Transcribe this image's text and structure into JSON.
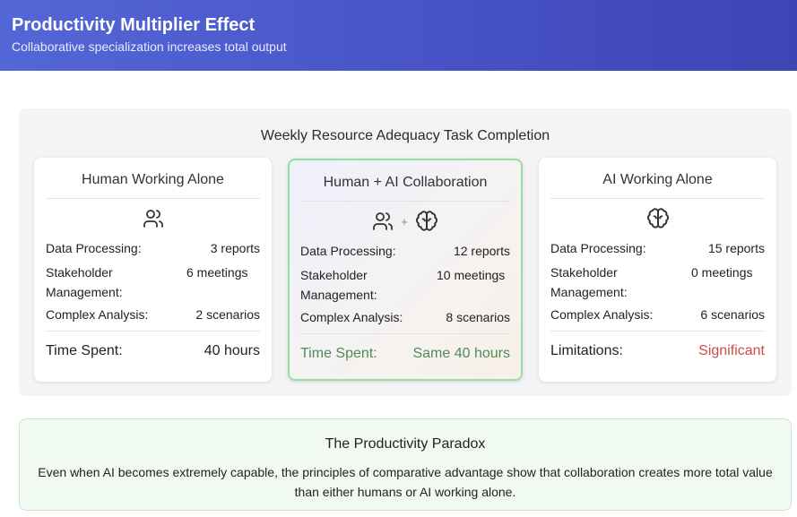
{
  "header": {
    "title": "Productivity Multiplier Effect",
    "subtitle": "Collaborative specialization increases total output"
  },
  "panel": {
    "title": "Weekly Resource Adequacy Task Completion"
  },
  "cards": [
    {
      "title": "Human Working Alone",
      "icons": [
        "users-icon"
      ],
      "rows": [
        {
          "label": "Data Processing:",
          "value": "3 reports"
        },
        {
          "label": "Stakeholder Management:",
          "value": "6 meetings"
        },
        {
          "label": "Complex Analysis:",
          "value": "2 scenarios"
        }
      ],
      "footer": {
        "label": "Time Spent:",
        "value": "40 hours"
      }
    },
    {
      "title": "Human + AI Collaboration",
      "icons": [
        "users-icon",
        "plus",
        "brain-icon"
      ],
      "plus": "+",
      "rows": [
        {
          "label": "Data Processing:",
          "value": "12 reports"
        },
        {
          "label": "Stakeholder Management:",
          "value": "10 meetings"
        },
        {
          "label": "Complex Analysis:",
          "value": "8 scenarios"
        }
      ],
      "footer": {
        "label": "Time Spent:",
        "value": "Same 40 hours"
      }
    },
    {
      "title": "AI Working Alone",
      "icons": [
        "brain-icon"
      ],
      "rows": [
        {
          "label": "Data Processing:",
          "value": "15 reports"
        },
        {
          "label": "Stakeholder Management:",
          "value": "0 meetings"
        },
        {
          "label": "Complex Analysis:",
          "value": "6 scenarios"
        }
      ],
      "footer": {
        "label": "Limitations:",
        "value": "Significant"
      }
    }
  ],
  "paradox": {
    "title": "The Productivity Paradox",
    "text": "Even when AI becomes extremely capable, the principles of comparative advantage show that collaboration creates more total value than either humans or AI working alone."
  },
  "colors": {
    "header_gradient_start": "#5467d6",
    "header_gradient_end": "#3d45b4",
    "collab_border": "#98dea4",
    "collab_footer_text": "#4f8a57",
    "limitation_text": "#cc4b4b",
    "paradox_background": "#f0faf2"
  }
}
